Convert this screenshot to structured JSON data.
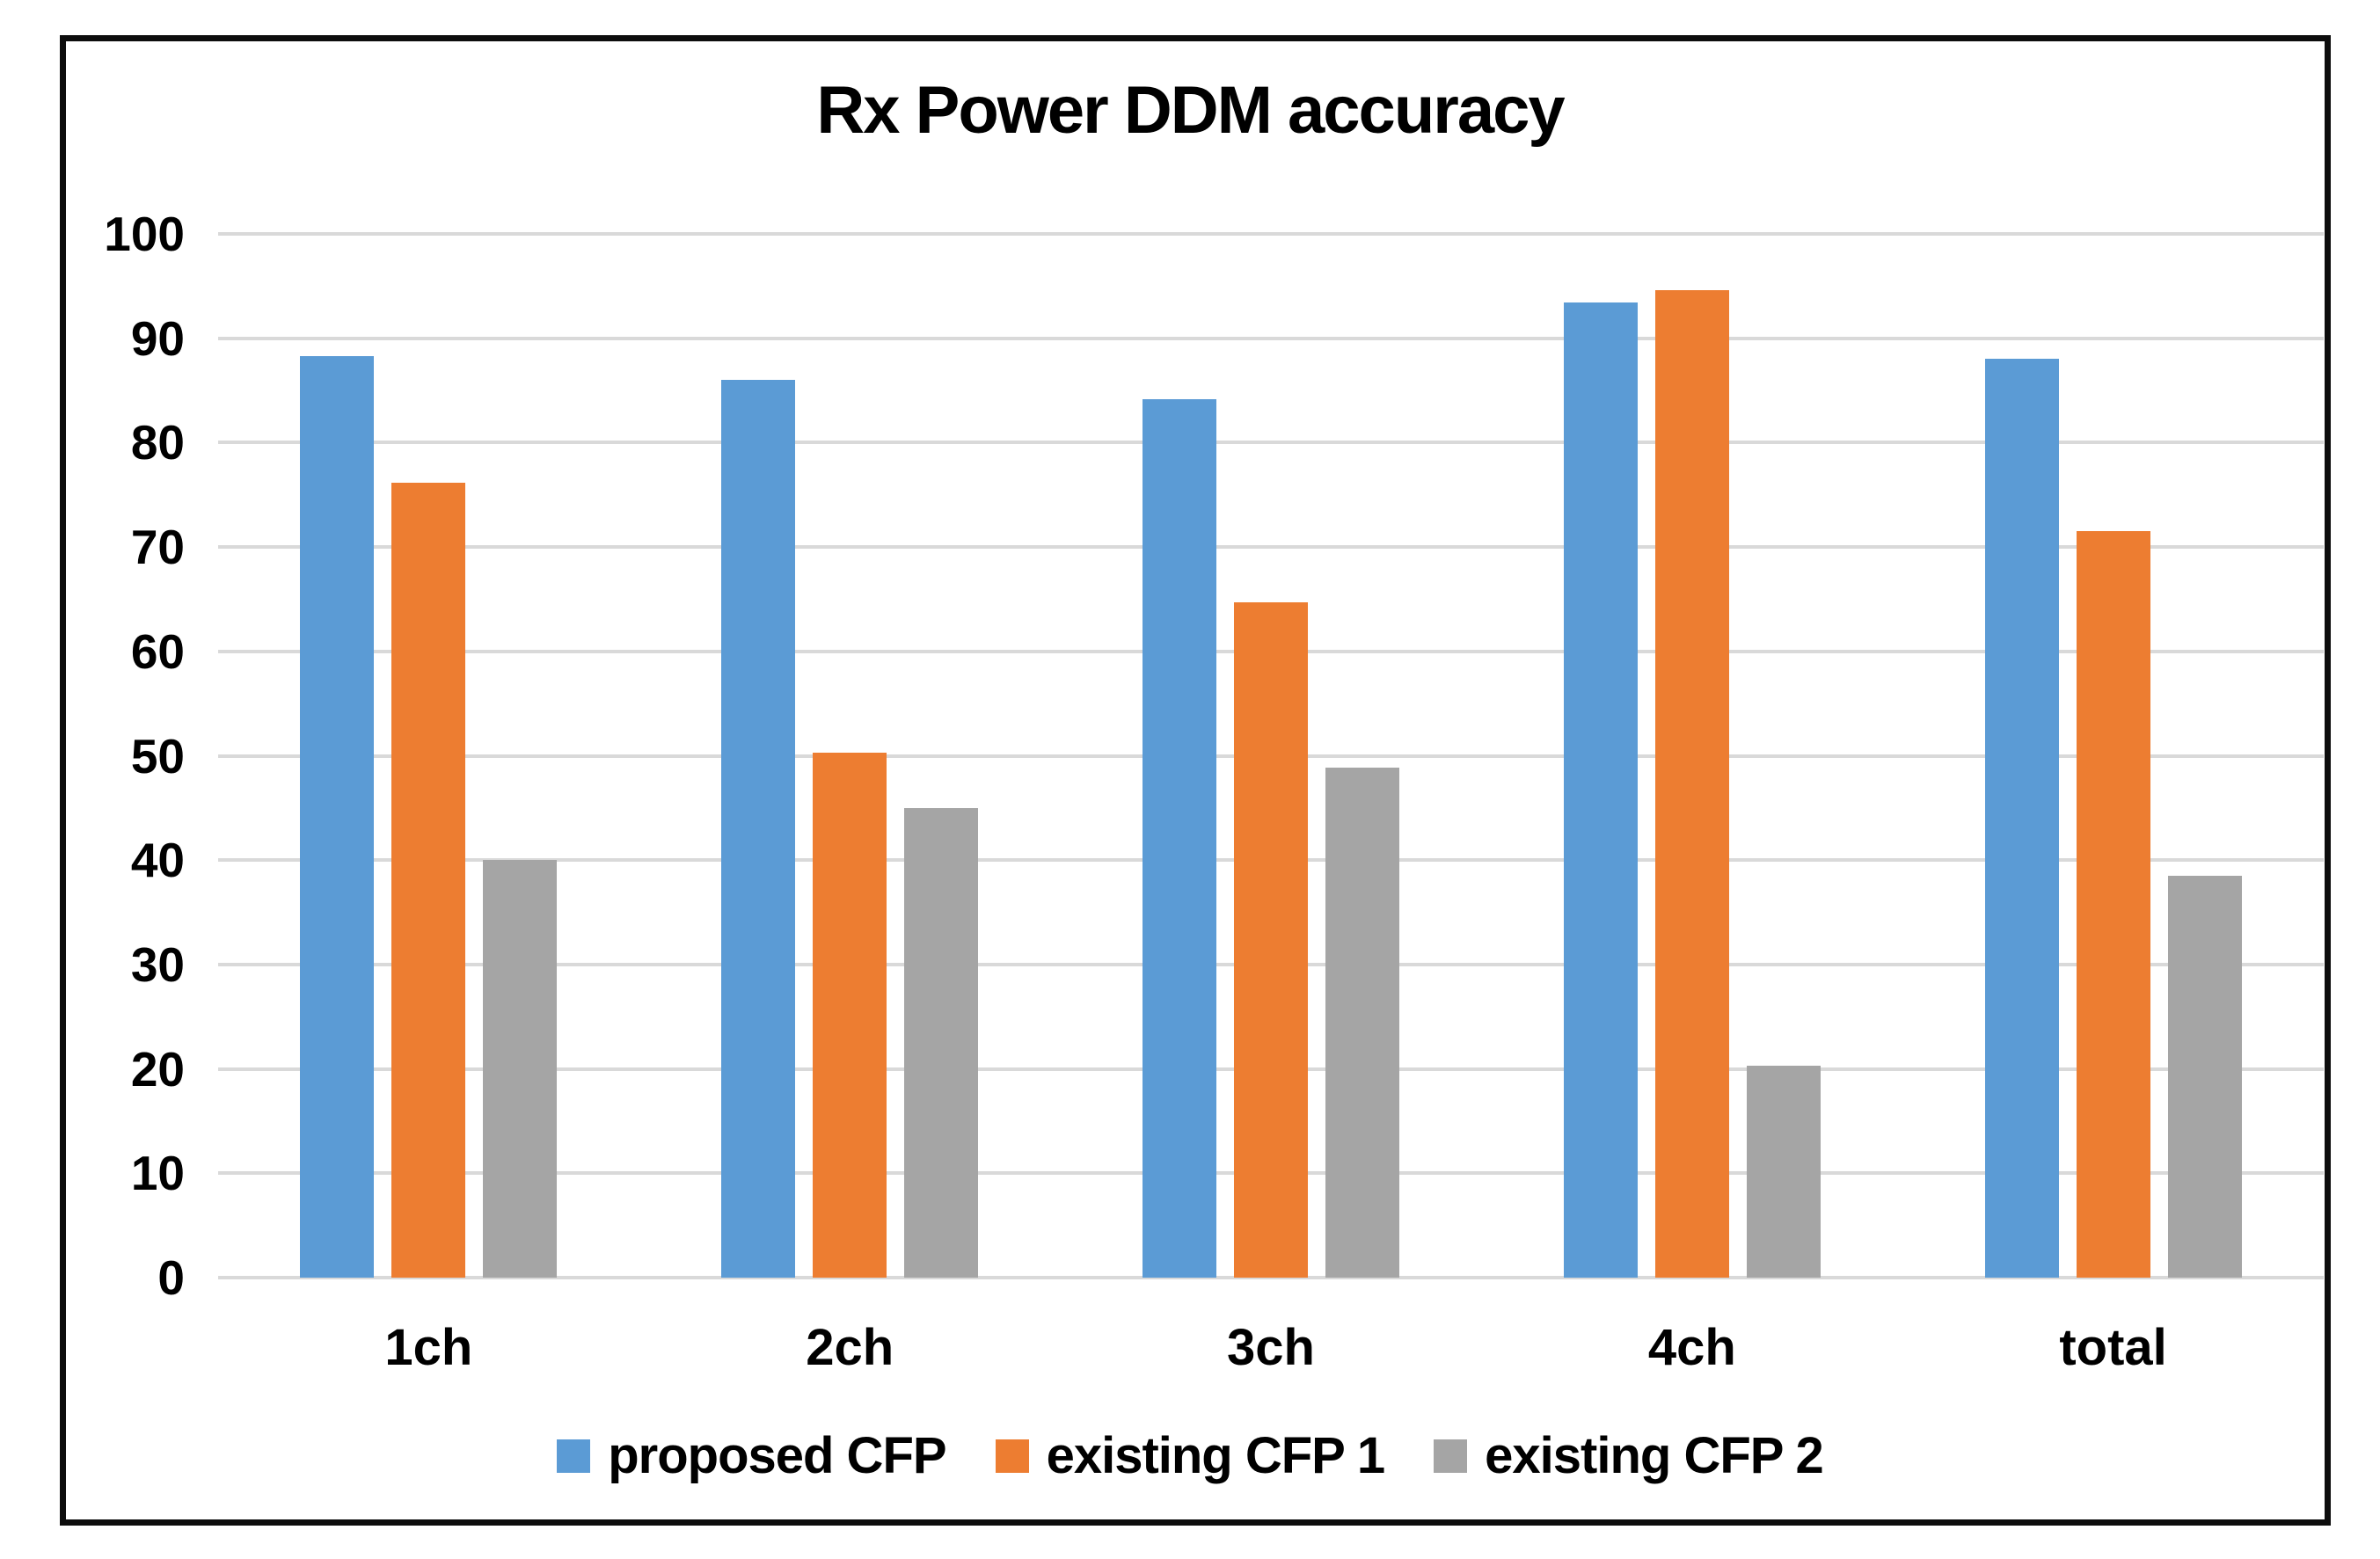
{
  "chart_data": {
    "type": "bar",
    "title": "Rx Power DDM accuracy",
    "categories": [
      "1ch",
      "2ch",
      "3ch",
      "4ch",
      "total"
    ],
    "series": [
      {
        "name": "proposed CFP",
        "color": "#5B9BD5",
        "values": [
          88.3,
          86.0,
          84.2,
          93.4,
          88.0
        ]
      },
      {
        "name": "existing CFP 1",
        "color": "#ED7D31",
        "values": [
          76.2,
          50.3,
          64.7,
          94.6,
          71.5
        ]
      },
      {
        "name": "existing CFP 2",
        "color": "#A5A5A5",
        "values": [
          40.0,
          45.0,
          48.9,
          20.3,
          38.5
        ]
      }
    ],
    "xlabel": "",
    "ylabel": "",
    "ylim": [
      0,
      100
    ],
    "yticks": [
      0,
      10,
      20,
      30,
      40,
      50,
      60,
      70,
      80,
      90,
      100
    ],
    "grid": "horizontal",
    "legend_position": "bottom"
  },
  "colors": {
    "gridline": "#D9D9D9",
    "frame": "#0d0d0d",
    "text": "#000000",
    "background": "#FFFFFF"
  }
}
